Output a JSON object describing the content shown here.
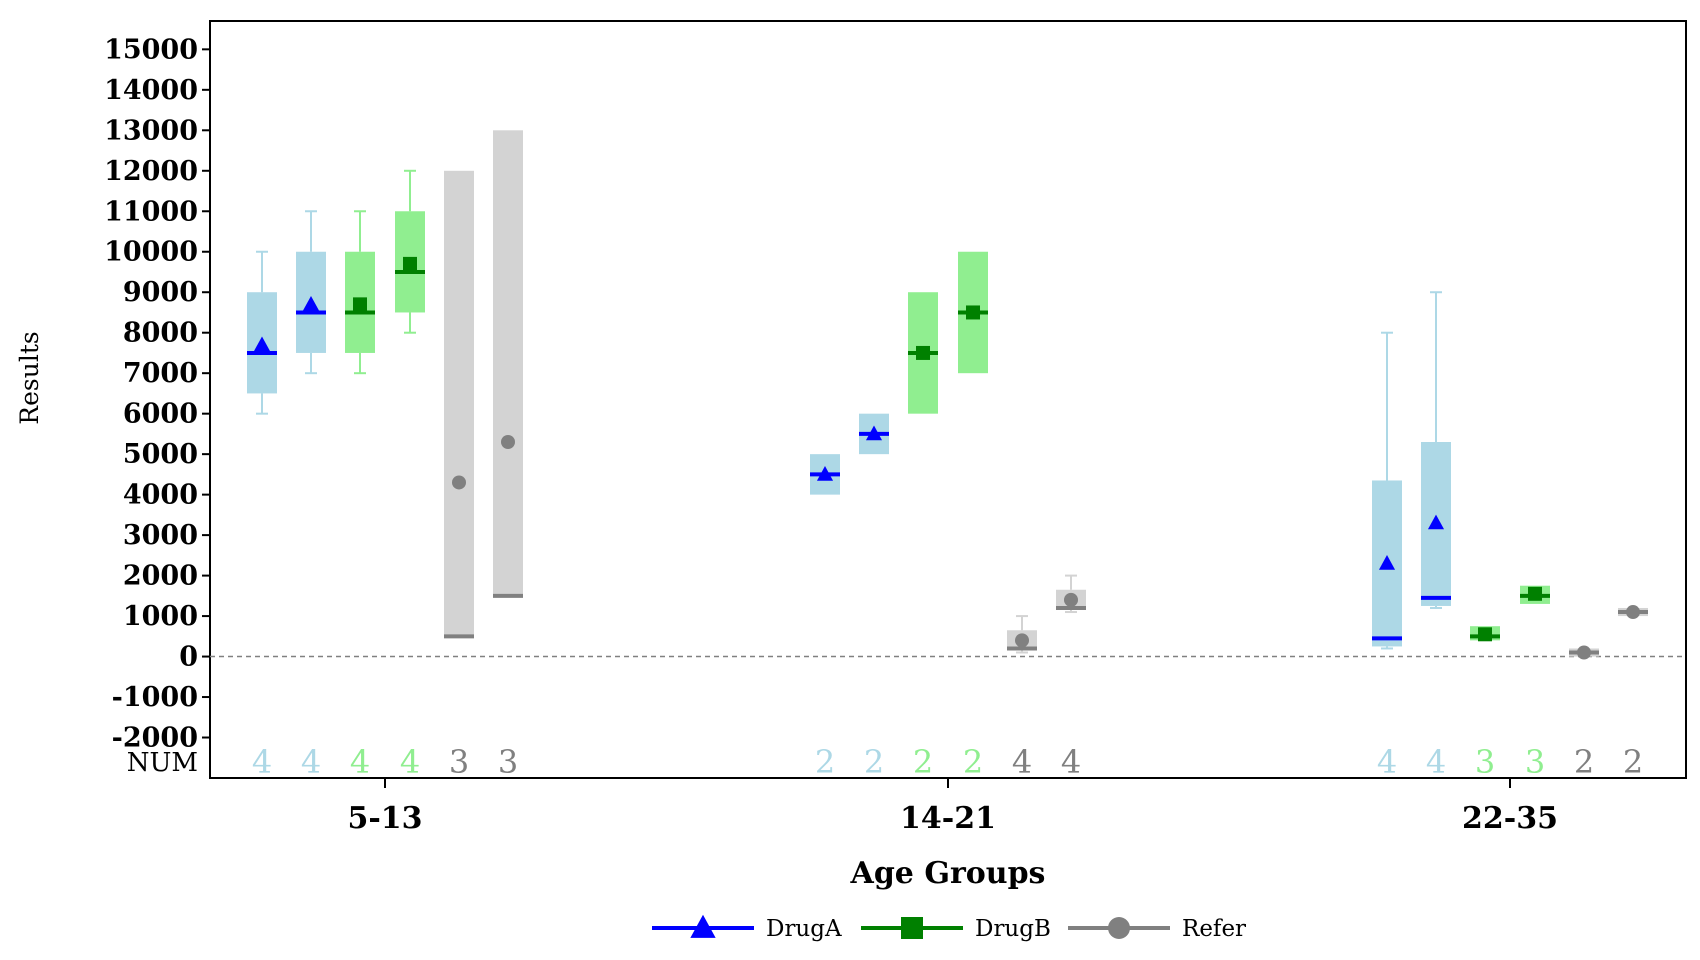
{
  "chart_data": {
    "type": "boxplot",
    "xlabel": "Age Groups",
    "ylabel": "Results",
    "ylim": [
      -3000,
      15700
    ],
    "yticks": [
      -2000,
      -1000,
      0,
      1000,
      2000,
      3000,
      4000,
      5000,
      6000,
      7000,
      8000,
      9000,
      10000,
      11000,
      12000,
      13000,
      14000,
      15000
    ],
    "reference_line": 0,
    "count_row_label": "NUM",
    "groups": [
      "5-13",
      "14-21",
      "22-35"
    ],
    "legend": {
      "position": "bottom",
      "entries": [
        {
          "name": "DrugA",
          "color": "#0000ff",
          "marker": "triangle"
        },
        {
          "name": "DrugB",
          "color": "#008000",
          "marker": "square"
        },
        {
          "name": "Refer",
          "color": "#808080",
          "marker": "circle"
        }
      ]
    },
    "series_styles": {
      "DrugA": {
        "fill": "#add8e6",
        "line": "#0000ff",
        "marker": "triangle",
        "count_color": "#add8e6"
      },
      "DrugB": {
        "fill": "#90ee90",
        "line": "#008000",
        "marker": "square",
        "count_color": "#90ee90"
      },
      "Refer": {
        "fill": "#d3d3d3",
        "line": "#808080",
        "marker": "circle",
        "count_color": "#808080"
      }
    },
    "boxes": [
      {
        "group": "5-13",
        "series": "DrugA",
        "min": 6000,
        "q1": 6500,
        "median": 7500,
        "q3": 9000,
        "max": 10000,
        "mean": 7700,
        "n": "4"
      },
      {
        "group": "5-13",
        "series": "DrugA",
        "min": 7000,
        "q1": 7500,
        "median": 8500,
        "q3": 10000,
        "max": 11000,
        "mean": 8700,
        "n": "4"
      },
      {
        "group": "5-13",
        "series": "DrugB",
        "min": 7000,
        "q1": 7500,
        "median": 8500,
        "q3": 10000,
        "max": 11000,
        "mean": 8700,
        "n": "4"
      },
      {
        "group": "5-13",
        "series": "DrugB",
        "min": 8000,
        "q1": 8500,
        "median": 9500,
        "q3": 11000,
        "max": 12000,
        "mean": 9700,
        "n": "4"
      },
      {
        "group": "5-13",
        "series": "Refer",
        "min": 500,
        "q1": 500,
        "median": 500,
        "q3": 12000,
        "max": 12000,
        "mean": 4300,
        "n": "3"
      },
      {
        "group": "5-13",
        "series": "Refer",
        "min": 1500,
        "q1": 1500,
        "median": 1500,
        "q3": 13000,
        "max": 13000,
        "mean": 5300,
        "n": "3"
      },
      {
        "group": "14-21",
        "series": "DrugA",
        "min": 4000,
        "q1": 4000,
        "median": 4500,
        "q3": 5000,
        "max": 5000,
        "mean": 4500,
        "n": "2"
      },
      {
        "group": "14-21",
        "series": "DrugA",
        "min": 5000,
        "q1": 5000,
        "median": 5500,
        "q3": 6000,
        "max": 6000,
        "mean": 5500,
        "n": "2"
      },
      {
        "group": "14-21",
        "series": "DrugB",
        "min": 6000,
        "q1": 6000,
        "median": 7500,
        "q3": 9000,
        "max": 9000,
        "mean": 7500,
        "n": "2"
      },
      {
        "group": "14-21",
        "series": "DrugB",
        "min": 7000,
        "q1": 7000,
        "median": 8500,
        "q3": 10000,
        "max": 10000,
        "mean": 8500,
        "n": "2"
      },
      {
        "group": "14-21",
        "series": "Refer",
        "min": 100,
        "q1": 150,
        "median": 200,
        "q3": 650,
        "max": 1000,
        "mean": 400,
        "n": "4"
      },
      {
        "group": "14-21",
        "series": "Refer",
        "min": 1100,
        "q1": 1150,
        "median": 1200,
        "q3": 1650,
        "max": 2000,
        "mean": 1400,
        "n": "4"
      },
      {
        "group": "22-35",
        "series": "DrugA",
        "min": 200,
        "q1": 250,
        "median": 450,
        "q3": 4350,
        "max": 8000,
        "mean": 2300,
        "n": "4"
      },
      {
        "group": "22-35",
        "series": "DrugA",
        "min": 1200,
        "q1": 1250,
        "median": 1450,
        "q3": 5300,
        "max": 9000,
        "mean": 3300,
        "n": "4"
      },
      {
        "group": "22-35",
        "series": "DrugB",
        "min": 400,
        "q1": 400,
        "median": 500,
        "q3": 750,
        "max": 750,
        "mean": 550,
        "n": "3"
      },
      {
        "group": "22-35",
        "series": "DrugB",
        "min": 1300,
        "q1": 1300,
        "median": 1500,
        "q3": 1750,
        "max": 1750,
        "mean": 1550,
        "n": "3"
      },
      {
        "group": "22-35",
        "series": "Refer",
        "min": 0,
        "q1": 0,
        "median": 100,
        "q3": 200,
        "max": 200,
        "mean": 100,
        "n": "2"
      },
      {
        "group": "22-35",
        "series": "Refer",
        "min": 1000,
        "q1": 1000,
        "median": 1100,
        "q3": 1200,
        "max": 1200,
        "mean": 1100,
        "n": "2"
      }
    ]
  }
}
